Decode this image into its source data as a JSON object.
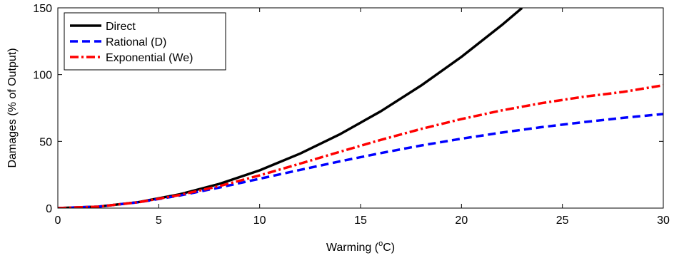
{
  "chart_data": {
    "type": "line",
    "xlabel_main": "Warming (",
    "xlabel_sup": "o",
    "xlabel_tail": "C)",
    "ylabel": "Damages (% of Output)",
    "xlim": [
      0,
      30
    ],
    "ylim": [
      0,
      150
    ],
    "xticks": [
      0,
      5,
      10,
      15,
      20,
      25,
      30
    ],
    "yticks": [
      0,
      50,
      100,
      150
    ],
    "grid": false,
    "legend_position": "top-left",
    "series": [
      {
        "name": "Direct",
        "color": "#000000",
        "style": "solid",
        "x": [
          0,
          2,
          4,
          6,
          8,
          10,
          12,
          14,
          16,
          18,
          20,
          22,
          23
        ],
        "y": [
          0,
          1.1,
          4.5,
          10.2,
          18.1,
          28.3,
          40.8,
          55.5,
          72.5,
          91.8,
          113.3,
          137.1,
          149.9
        ]
      },
      {
        "name": "Rational (D)",
        "color": "#0000ff",
        "style": "dashed",
        "x": [
          0,
          2,
          4,
          6,
          8,
          10,
          12,
          14,
          16,
          18,
          20,
          22,
          24,
          26,
          28,
          30
        ],
        "y": [
          0,
          1.1,
          4.4,
          9.3,
          15.4,
          22.0,
          28.6,
          35.1,
          41.2,
          46.9,
          52.0,
          56.6,
          60.7,
          64.3,
          67.6,
          70.5
        ]
      },
      {
        "name": "Exponential (We)",
        "color": "#ff0000",
        "style": "dashdot",
        "x": [
          0,
          2,
          4,
          6,
          8,
          10,
          12,
          14,
          16,
          18,
          20,
          22,
          24,
          26,
          28,
          30
        ],
        "y": [
          0,
          1.1,
          4.4,
          9.7,
          16.5,
          24.5,
          33.3,
          42.3,
          51.1,
          59.3,
          66.7,
          73.2,
          78.7,
          83.3,
          87.0,
          92.0
        ]
      }
    ]
  }
}
